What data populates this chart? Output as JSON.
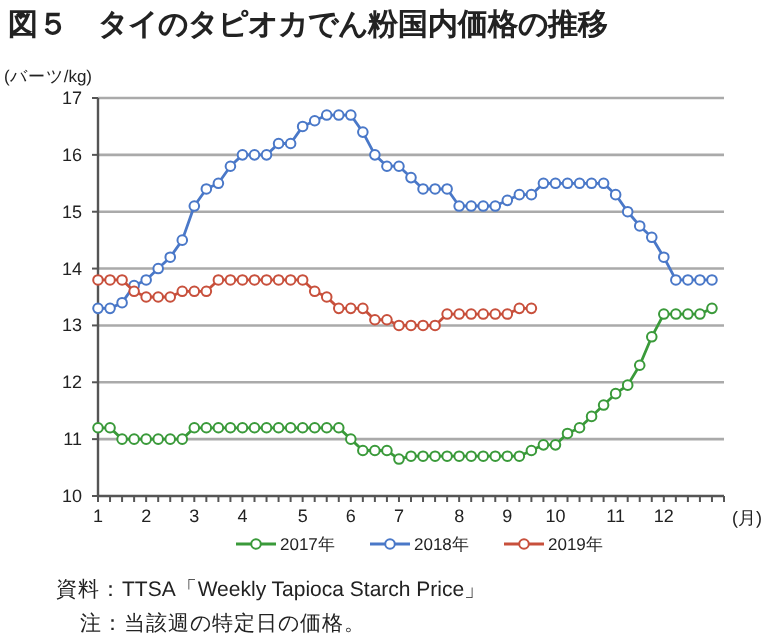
{
  "chart_data": {
    "type": "line",
    "title": "図５　タイのタピオカでん粉国内価格の推移",
    "ylabel": "(バーツ/kg)",
    "xlabel": "(月)",
    "categories": [
      "1",
      null,
      null,
      null,
      "2",
      null,
      null,
      null,
      "3",
      null,
      null,
      null,
      "4",
      null,
      null,
      null,
      null,
      "5",
      null,
      null,
      null,
      "6",
      null,
      null,
      null,
      "7",
      null,
      null,
      null,
      null,
      "8",
      null,
      null,
      null,
      "9",
      null,
      null,
      null,
      "10",
      null,
      null,
      null,
      null,
      "11",
      null,
      null,
      null,
      "12",
      null,
      null,
      null,
      null
    ],
    "series": [
      {
        "name": "2017年",
        "color": "#3a9a3a",
        "values": [
          11.2,
          11.2,
          11.0,
          11.0,
          11.0,
          11.0,
          11.0,
          11.0,
          11.2,
          11.2,
          11.2,
          11.2,
          11.2,
          11.2,
          11.2,
          11.2,
          11.2,
          11.2,
          11.2,
          11.2,
          11.2,
          11.0,
          10.8,
          10.8,
          10.8,
          10.65,
          10.7,
          10.7,
          10.7,
          10.7,
          10.7,
          10.7,
          10.7,
          10.7,
          10.7,
          10.7,
          10.8,
          10.9,
          10.9,
          11.1,
          11.2,
          11.4,
          11.6,
          11.8,
          11.95,
          12.3,
          12.8,
          13.2,
          13.2,
          13.2,
          13.2,
          13.3
        ]
      },
      {
        "name": "2018年",
        "color": "#4a78c8",
        "values": [
          13.3,
          13.3,
          13.4,
          13.7,
          13.8,
          14.0,
          14.2,
          14.5,
          15.1,
          15.4,
          15.5,
          15.8,
          16.0,
          16.0,
          16.0,
          16.2,
          16.2,
          16.5,
          16.6,
          16.7,
          16.7,
          16.7,
          16.4,
          16.0,
          15.8,
          15.8,
          15.6,
          15.4,
          15.4,
          15.4,
          15.1,
          15.1,
          15.1,
          15.1,
          15.2,
          15.3,
          15.3,
          15.5,
          15.5,
          15.5,
          15.5,
          15.5,
          15.5,
          15.3,
          15.0,
          14.75,
          14.55,
          14.2,
          13.8,
          13.8,
          13.8,
          13.8
        ]
      },
      {
        "name": "2019年",
        "color": "#c8503c",
        "values": [
          13.8,
          13.8,
          13.8,
          13.6,
          13.5,
          13.5,
          13.5,
          13.6,
          13.6,
          13.6,
          13.8,
          13.8,
          13.8,
          13.8,
          13.8,
          13.8,
          13.8,
          13.8,
          13.6,
          13.5,
          13.3,
          13.3,
          13.3,
          13.1,
          13.1,
          13.0,
          13.0,
          13.0,
          13.0,
          13.2,
          13.2,
          13.2,
          13.2,
          13.2,
          13.2,
          13.3,
          13.3,
          null,
          null,
          null,
          null,
          null,
          null,
          null,
          null,
          null,
          null,
          null,
          null,
          null,
          null,
          null
        ]
      }
    ],
    "ylim": [
      10,
      17
    ],
    "yticks": [
      10,
      11,
      12,
      13,
      14,
      15,
      16,
      17
    ],
    "grid": "y",
    "legend": "bottom",
    "marker": "circle",
    "line_style": "solid",
    "annotations": [
      "資料：TTSA「Weekly Tapioca Starch Price」",
      "注：当該週の特定日の価格。"
    ]
  }
}
